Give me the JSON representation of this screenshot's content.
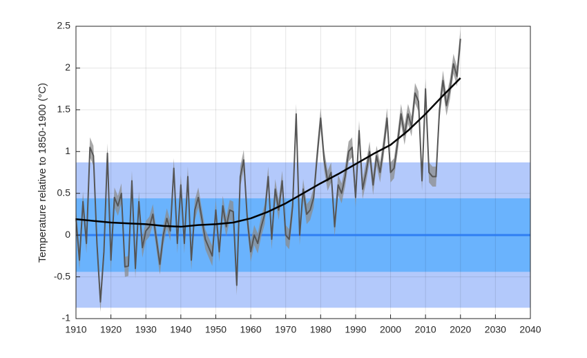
{
  "chart_data": {
    "type": "line",
    "ylabel": "Temperature relative to 1850-1900 (°C)",
    "xlim": [
      1910,
      2040
    ],
    "xticks": [
      1910,
      1920,
      1930,
      1940,
      1950,
      1960,
      1970,
      1980,
      1990,
      2000,
      2010,
      2020,
      2030,
      2040
    ],
    "ylim": [
      -1,
      2.5
    ],
    "yticks": [
      -1,
      -0.5,
      0,
      0.5,
      1,
      1.5,
      2,
      2.5
    ],
    "grid": true,
    "bands": [
      {
        "lower": -0.87,
        "upper": 0.87,
        "color": "#b3c9fb"
      },
      {
        "lower": -0.44,
        "upper": 0.44,
        "color": "#6ab3fd"
      }
    ],
    "reference_line": {
      "value": 0,
      "color": "#2f7ef2"
    },
    "annual": {
      "color": "#555555",
      "band_color": "#8c8c8c",
      "uncertainty": 0.12,
      "x": [
        1910,
        1911,
        1912,
        1913,
        1914,
        1915,
        1916,
        1917,
        1918,
        1919,
        1920,
        1921,
        1922,
        1923,
        1924,
        1925,
        1926,
        1927,
        1928,
        1929,
        1930,
        1931,
        1932,
        1933,
        1934,
        1935,
        1936,
        1937,
        1938,
        1939,
        1940,
        1941,
        1942,
        1943,
        1944,
        1945,
        1946,
        1947,
        1948,
        1949,
        1950,
        1951,
        1952,
        1953,
        1954,
        1955,
        1956,
        1957,
        1958,
        1959,
        1960,
        1961,
        1962,
        1963,
        1964,
        1965,
        1966,
        1967,
        1968,
        1969,
        1970,
        1971,
        1972,
        1973,
        1974,
        1975,
        1976,
        1977,
        1978,
        1979,
        1980,
        1981,
        1982,
        1983,
        1984,
        1985,
        1986,
        1987,
        1988,
        1989,
        1990,
        1991,
        1992,
        1993,
        1994,
        1995,
        1996,
        1997,
        1998,
        1999,
        2000,
        2001,
        2002,
        2003,
        2004,
        2005,
        2006,
        2007,
        2008,
        2009,
        2010,
        2011,
        2012,
        2013,
        2014,
        2015,
        2016,
        2017,
        2018,
        2019,
        2020
      ],
      "values": [
        0.2,
        -0.3,
        0.4,
        -0.1,
        1.05,
        0.95,
        -0.1,
        -0.8,
        -0.2,
        0.98,
        -0.3,
        0.45,
        0.35,
        0.5,
        -0.38,
        -0.37,
        0.65,
        -0.4,
        0.4,
        -0.15,
        0.05,
        0.1,
        0.25,
        -0.05,
        -0.35,
        0.0,
        0.2,
        0.05,
        0.8,
        -0.1,
        0.6,
        -0.1,
        0.7,
        -0.3,
        0.3,
        0.45,
        0.2,
        -0.05,
        -0.15,
        -0.25,
        0.3,
        -0.2,
        0.35,
        0.1,
        0.3,
        0.28,
        -0.6,
        0.7,
        0.9,
        0.2,
        -0.2,
        0.0,
        -0.1,
        0.1,
        0.25,
        0.7,
        -0.05,
        0.55,
        0.3,
        0.65,
        0.0,
        -0.05,
        0.35,
        1.45,
        0.0,
        0.55,
        0.25,
        0.3,
        0.45,
        0.95,
        1.4,
        0.9,
        0.65,
        0.75,
        0.1,
        0.6,
        0.5,
        0.7,
        1.0,
        1.05,
        0.45,
        1.25,
        0.55,
        0.75,
        1.0,
        0.6,
        0.95,
        0.75,
        1.05,
        1.4,
        0.75,
        0.8,
        1.1,
        1.45,
        1.2,
        1.45,
        1.3,
        1.7,
        1.6,
        0.65,
        1.75,
        0.75,
        0.7,
        0.7,
        1.5,
        1.85,
        1.55,
        1.75,
        2.05,
        1.9,
        2.35
      ]
    },
    "trend": {
      "color": "#000000",
      "x": [
        1910,
        1915,
        1920,
        1925,
        1930,
        1935,
        1940,
        1945,
        1950,
        1955,
        1960,
        1965,
        1970,
        1975,
        1980,
        1985,
        1990,
        1995,
        2000,
        2005,
        2010,
        2015,
        2020
      ],
      "values": [
        0.19,
        0.17,
        0.15,
        0.14,
        0.13,
        0.11,
        0.1,
        0.12,
        0.13,
        0.15,
        0.2,
        0.28,
        0.38,
        0.5,
        0.62,
        0.73,
        0.85,
        0.97,
        1.08,
        1.25,
        1.45,
        1.67,
        1.88
      ]
    }
  }
}
